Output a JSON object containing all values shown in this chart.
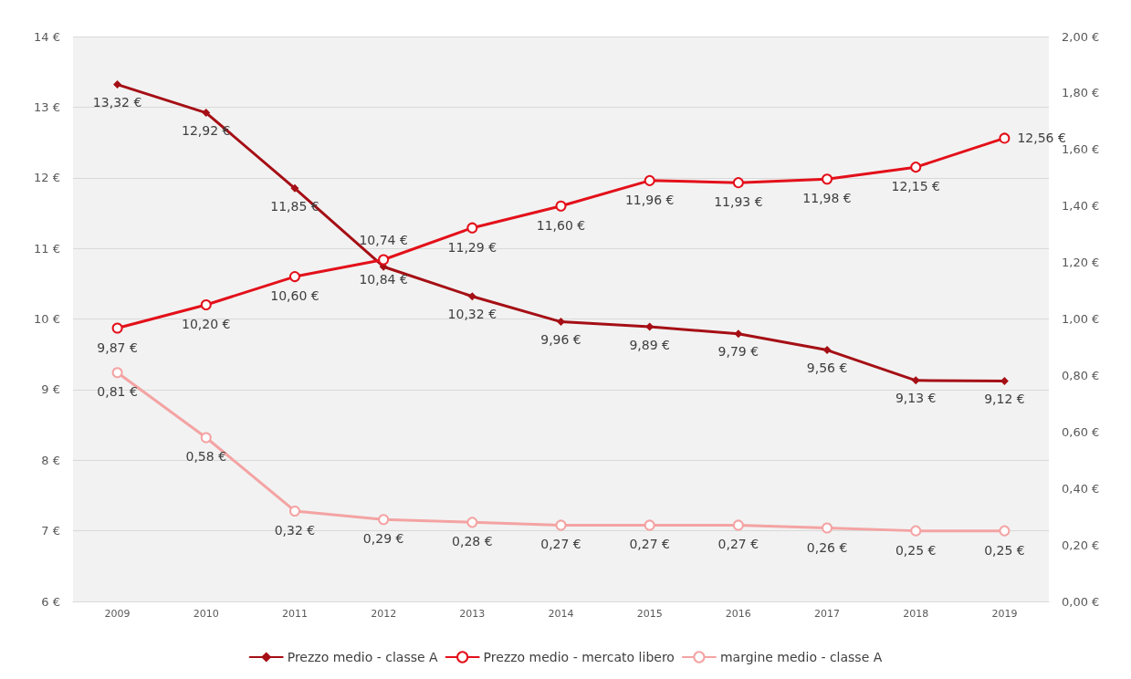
{
  "chart_data": {
    "type": "line",
    "categories": [
      "2009",
      "2010",
      "2011",
      "2012",
      "2013",
      "2014",
      "2015",
      "2016",
      "2017",
      "2018",
      "2019"
    ],
    "ylim": [
      6,
      14
    ],
    "yticks": [
      {
        "value": 6,
        "label": "6 €"
      },
      {
        "value": 7,
        "label": "7 €"
      },
      {
        "value": 8,
        "label": "8 €"
      },
      {
        "value": 9,
        "label": "9 €"
      },
      {
        "value": 10,
        "label": "10 €"
      },
      {
        "value": 11,
        "label": "11 €"
      },
      {
        "value": 12,
        "label": "12 €"
      },
      {
        "value": 13,
        "label": "13 €"
      },
      {
        "value": 14,
        "label": "14 €"
      }
    ],
    "y2lim": [
      0,
      2
    ],
    "y2ticks": [
      {
        "value": 0,
        "label": "0,00 €"
      },
      {
        "value": 0.2,
        "label": "0,20 €"
      },
      {
        "value": 0.4,
        "label": "0,40 €"
      },
      {
        "value": 0.6,
        "label": "0,60 €"
      },
      {
        "value": 0.8,
        "label": "0,80 €"
      },
      {
        "value": 1,
        "label": "1,00 €"
      },
      {
        "value": 1.2,
        "label": "1,20 €"
      },
      {
        "value": 1.4,
        "label": "1,40 €"
      },
      {
        "value": 1.6,
        "label": "1,60 €"
      },
      {
        "value": 1.8,
        "label": "1,80 €"
      },
      {
        "value": 2,
        "label": "2,00 €"
      }
    ],
    "grid": "y",
    "legend": "bottom",
    "line_style": "solid",
    "series": [
      {
        "name": "Prezzo medio - classe A",
        "color": "#a50f15",
        "marker": "diamond",
        "values": [
          13.32,
          12.92,
          11.85,
          10.74,
          10.32,
          9.96,
          9.89,
          9.79,
          9.56,
          9.13,
          9.12
        ],
        "value_labels": [
          "13,32 €",
          "12,92 €",
          "11,85 €",
          "10,74 €",
          "10,32 €",
          "9,96 €",
          "9,89 €",
          "9,79 €",
          "9,56 €",
          "9,13 €",
          "9,12 €"
        ]
      },
      {
        "name": "Prezzo medio - mercato libero",
        "color": "#e3101a",
        "marker": "circle",
        "values": [
          9.87,
          10.2,
          10.6,
          10.84,
          11.29,
          11.6,
          11.96,
          11.93,
          11.98,
          12.15,
          12.56
        ],
        "value_labels": [
          "9,87 €",
          "10,20 €",
          "10,60 €",
          "10,84 €",
          "11,29 €",
          "11,60 €",
          "11,96 €",
          "11,93 €",
          "11,98 €",
          "12,15 €",
          "12,56 €"
        ]
      },
      {
        "name": "margine medio - classe A",
        "color": "#f4a3a3",
        "marker": "circle",
        "axis": "y2",
        "values": [
          0.81,
          0.58,
          0.32,
          0.29,
          0.28,
          0.27,
          0.27,
          0.27,
          0.26,
          0.25,
          0.25
        ],
        "value_labels": [
          "0,81 €",
          "0,58 €",
          "0,32 €",
          "0,29 €",
          "0,28 €",
          "0,27 €",
          "0,27 €",
          "0,27 €",
          "0,26 €",
          "0,25 €",
          "0,25 €"
        ]
      }
    ]
  }
}
